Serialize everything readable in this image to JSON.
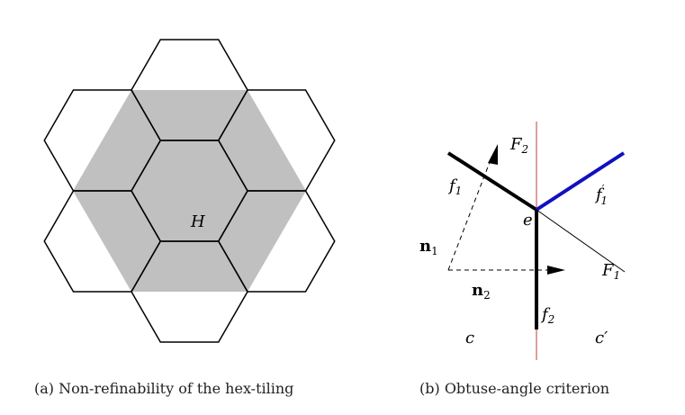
{
  "figure_a": {
    "caption": "(a) Non-refinability of the hex-tiling",
    "label_H": "H",
    "fill_color": "#c0c0c0"
  },
  "figure_b": {
    "caption": "(b) Obtuse-angle criterion",
    "labels": {
      "F2": "F",
      "F2_sub": "2",
      "F1": "F",
      "F1_sub": "1",
      "f1": "f",
      "f1_sub": "1",
      "f1p": "f",
      "f1p_sub": "1",
      "f1p_prime": "′",
      "e": "e",
      "n1": "n",
      "n1_sub": "1",
      "n2": "n",
      "n2_sub": "2",
      "f2": "f",
      "f2_sub": "2",
      "c": "c",
      "cp": "c′"
    },
    "colors": {
      "red_line": "#d08080",
      "blue_edge": "#1010c0"
    }
  }
}
